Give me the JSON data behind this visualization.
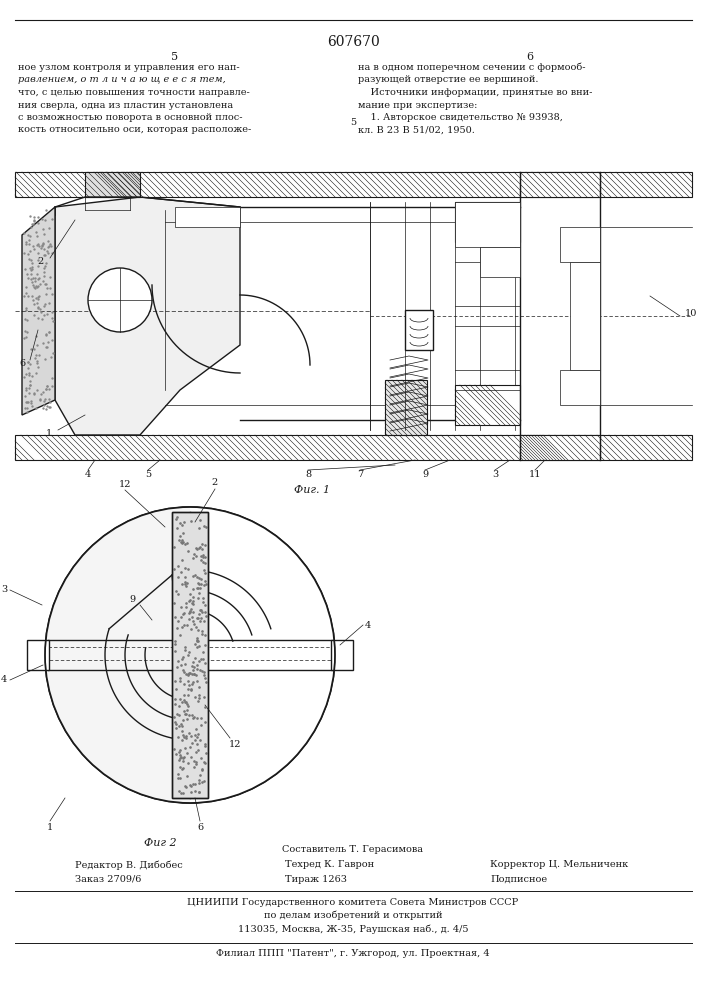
{
  "patent_number": "607670",
  "page_left": "5",
  "page_right": "6",
  "text_left_col": [
    "ное узлом контроля и управления его нап-",
    "равлением, о т л и ч а ю щ е е с я тем,",
    "что, с целью повышения точности направле-",
    "ния сверла, одна из пластин установлена",
    "с возможностью поворота в основной плос-",
    "кость относительно оси, которая расположе-"
  ],
  "text_right_col": [
    "на в одном поперечном сечении с формооб-",
    "разующей отверстие ее вершиной.",
    "    Источники информации, принятые во вни-",
    "мание при экспертизе:",
    "    1. Авторское свидетельство № 93938,",
    "кл. В 23 В 51/02, 1950."
  ],
  "fig1_label": "Фиг. 1",
  "fig2_label": "Фиг 2",
  "composer": "Составитель Т. Герасимова",
  "editor": "Редактор В. Дибобес",
  "techred": "Техред К. Гаврон",
  "corrector": "Корректор Ц. Мельниченк",
  "order": "Заказ 2709/6",
  "tirazh": "Тираж 1263",
  "podpisnoe": "Подписное",
  "org1": "ЦНИИПИ Государственного комитета Совета Министров СССР",
  "org2": "по делам изобретений и открытий",
  "org3": "113035, Москва, Ж-35, Раушская наб., д. 4/5",
  "filial": "Филиал ППП \"Патент\", г. Ужгород, ул. Проектная, 4",
  "line_color": "#1a1a1a"
}
